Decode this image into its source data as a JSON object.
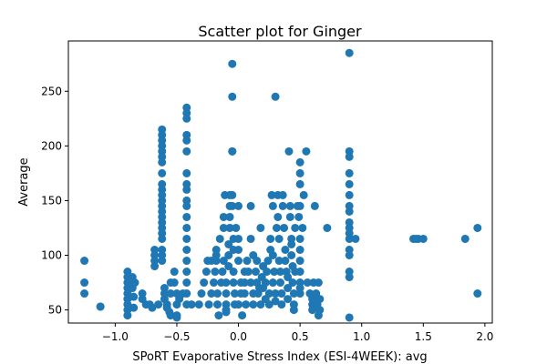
{
  "chart_data": {
    "type": "scatter",
    "title": "Scatter plot for Ginger",
    "xlabel": "SPoRT Evaporative Stress Index (ESI-4WEEK): avg",
    "ylabel": "Average",
    "xlim": [
      -1.38,
      2.06
    ],
    "ylim": [
      38,
      296
    ],
    "xticks": [
      -1.0,
      -0.5,
      0.0,
      0.5,
      1.0,
      1.5,
      2.0
    ],
    "xtick_labels": [
      "−1.0",
      "−0.5",
      "0.0",
      "0.5",
      "1.0",
      "1.5",
      "2.0"
    ],
    "yticks": [
      50,
      100,
      150,
      200,
      250
    ],
    "ytick_labels": [
      "50",
      "100",
      "150",
      "200",
      "250"
    ],
    "grid": false,
    "marker_color": "#1f77b4",
    "points": [
      [
        -1.25,
        95
      ],
      [
        -1.25,
        75
      ],
      [
        -1.25,
        65
      ],
      [
        -1.12,
        53
      ],
      [
        -1.12,
        53
      ],
      [
        -0.9,
        85
      ],
      [
        -0.9,
        80
      ],
      [
        -0.9,
        75
      ],
      [
        -0.9,
        70
      ],
      [
        -0.9,
        65
      ],
      [
        -0.9,
        60
      ],
      [
        -0.9,
        55
      ],
      [
        -0.9,
        50
      ],
      [
        -0.9,
        45
      ],
      [
        -0.86,
        80
      ],
      [
        -0.86,
        70
      ],
      [
        -0.85,
        62
      ],
      [
        -0.85,
        52
      ],
      [
        -0.84,
        75
      ],
      [
        -0.78,
        65
      ],
      [
        -0.78,
        60
      ],
      [
        -0.75,
        55
      ],
      [
        -0.72,
        55
      ],
      [
        -0.7,
        52
      ],
      [
        -0.68,
        105
      ],
      [
        -0.68,
        100
      ],
      [
        -0.68,
        95
      ],
      [
        -0.68,
        90
      ],
      [
        -0.65,
        55
      ],
      [
        -0.62,
        215
      ],
      [
        -0.62,
        210
      ],
      [
        -0.62,
        205
      ],
      [
        -0.62,
        200
      ],
      [
        -0.62,
        195
      ],
      [
        -0.62,
        190
      ],
      [
        -0.62,
        185
      ],
      [
        -0.62,
        175
      ],
      [
        -0.62,
        165
      ],
      [
        -0.62,
        160
      ],
      [
        -0.62,
        155
      ],
      [
        -0.62,
        150
      ],
      [
        -0.62,
        145
      ],
      [
        -0.62,
        140
      ],
      [
        -0.62,
        135
      ],
      [
        -0.62,
        130
      ],
      [
        -0.62,
        125
      ],
      [
        -0.62,
        120
      ],
      [
        -0.62,
        115
      ],
      [
        -0.62,
        105
      ],
      [
        -0.62,
        100
      ],
      [
        -0.62,
        95
      ],
      [
        -0.6,
        70
      ],
      [
        -0.6,
        65
      ],
      [
        -0.6,
        60
      ],
      [
        -0.58,
        55
      ],
      [
        -0.58,
        52
      ],
      [
        -0.56,
        48
      ],
      [
        -0.55,
        45
      ],
      [
        -0.55,
        65
      ],
      [
        -0.55,
        75
      ],
      [
        -0.52,
        85
      ],
      [
        -0.52,
        75
      ],
      [
        -0.5,
        65
      ],
      [
        -0.5,
        55
      ],
      [
        -0.5,
        45
      ],
      [
        -0.5,
        43
      ],
      [
        -0.48,
        60
      ],
      [
        -0.45,
        65
      ],
      [
        -0.42,
        235
      ],
      [
        -0.42,
        230
      ],
      [
        -0.42,
        225
      ],
      [
        -0.42,
        210
      ],
      [
        -0.42,
        205
      ],
      [
        -0.42,
        195
      ],
      [
        -0.42,
        175
      ],
      [
        -0.42,
        165
      ],
      [
        -0.42,
        160
      ],
      [
        -0.42,
        150
      ],
      [
        -0.42,
        145
      ],
      [
        -0.42,
        135
      ],
      [
        -0.42,
        125
      ],
      [
        -0.42,
        115
      ],
      [
        -0.42,
        105
      ],
      [
        -0.42,
        95
      ],
      [
        -0.42,
        85
      ],
      [
        -0.42,
        75
      ],
      [
        -0.42,
        65
      ],
      [
        -0.42,
        55
      ],
      [
        -0.38,
        55
      ],
      [
        -0.32,
        55
      ],
      [
        -0.3,
        65
      ],
      [
        -0.28,
        75
      ],
      [
        -0.26,
        85
      ],
      [
        -0.25,
        95
      ],
      [
        -0.24,
        55
      ],
      [
        -0.22,
        65
      ],
      [
        -0.22,
        95
      ],
      [
        -0.2,
        75
      ],
      [
        -0.19,
        85
      ],
      [
        -0.18,
        95
      ],
      [
        -0.18,
        100
      ],
      [
        -0.18,
        105
      ],
      [
        -0.17,
        65
      ],
      [
        -0.17,
        55
      ],
      [
        -0.16,
        45
      ],
      [
        -0.15,
        115
      ],
      [
        -0.14,
        75
      ],
      [
        -0.13,
        85
      ],
      [
        -0.12,
        95
      ],
      [
        -0.12,
        125
      ],
      [
        -0.12,
        135
      ],
      [
        -0.11,
        155
      ],
      [
        -0.1,
        65
      ],
      [
        -0.1,
        75
      ],
      [
        -0.1,
        55
      ],
      [
        -0.1,
        50
      ],
      [
        -0.1,
        48
      ],
      [
        -0.08,
        110
      ],
      [
        -0.08,
        100
      ],
      [
        -0.08,
        90
      ],
      [
        -0.07,
        145
      ],
      [
        -0.07,
        135
      ],
      [
        -0.07,
        125
      ],
      [
        -0.07,
        155
      ],
      [
        -0.05,
        275
      ],
      [
        -0.05,
        245
      ],
      [
        -0.05,
        195
      ],
      [
        -0.05,
        195
      ],
      [
        -0.05,
        155
      ],
      [
        -0.05,
        145
      ],
      [
        -0.04,
        115
      ],
      [
        -0.04,
        105
      ],
      [
        -0.04,
        85
      ],
      [
        -0.04,
        75
      ],
      [
        -0.03,
        65
      ],
      [
        -0.03,
        55
      ],
      [
        -0.02,
        125
      ],
      [
        0.0,
        145
      ],
      [
        0.0,
        115
      ],
      [
        0.0,
        105
      ],
      [
        0.0,
        95
      ],
      [
        0.0,
        55
      ],
      [
        0.02,
        65
      ],
      [
        0.02,
        75
      ],
      [
        0.03,
        45
      ],
      [
        0.05,
        85
      ],
      [
        0.05,
        75
      ],
      [
        0.05,
        65
      ],
      [
        0.06,
        55
      ],
      [
        0.07,
        95
      ],
      [
        0.08,
        85
      ],
      [
        0.1,
        145
      ],
      [
        0.1,
        115
      ],
      [
        0.1,
        75
      ],
      [
        0.12,
        55
      ],
      [
        0.12,
        65
      ],
      [
        0.12,
        100
      ],
      [
        0.14,
        85
      ],
      [
        0.15,
        75
      ],
      [
        0.15,
        95
      ],
      [
        0.16,
        65
      ],
      [
        0.17,
        70
      ],
      [
        0.18,
        55
      ],
      [
        0.18,
        125
      ],
      [
        0.19,
        80
      ],
      [
        0.2,
        90
      ],
      [
        0.2,
        70
      ],
      [
        0.22,
        60
      ],
      [
        0.22,
        75
      ],
      [
        0.23,
        85
      ],
      [
        0.24,
        95
      ],
      [
        0.25,
        65
      ],
      [
        0.25,
        55
      ],
      [
        0.26,
        105
      ],
      [
        0.26,
        115
      ],
      [
        0.27,
        155
      ],
      [
        0.28,
        145
      ],
      [
        0.28,
        100
      ],
      [
        0.28,
        75
      ],
      [
        0.29,
        85
      ],
      [
        0.3,
        65
      ],
      [
        0.3,
        58
      ],
      [
        0.3,
        245
      ],
      [
        0.31,
        125
      ],
      [
        0.32,
        155
      ],
      [
        0.32,
        135
      ],
      [
        0.33,
        115
      ],
      [
        0.33,
        95
      ],
      [
        0.34,
        85
      ],
      [
        0.34,
        75
      ],
      [
        0.35,
        65
      ],
      [
        0.35,
        55
      ],
      [
        0.36,
        145
      ],
      [
        0.36,
        155
      ],
      [
        0.37,
        125
      ],
      [
        0.38,
        105
      ],
      [
        0.38,
        95
      ],
      [
        0.39,
        85
      ],
      [
        0.4,
        80
      ],
      [
        0.4,
        70
      ],
      [
        0.4,
        60
      ],
      [
        0.41,
        195
      ],
      [
        0.42,
        145
      ],
      [
        0.42,
        135
      ],
      [
        0.43,
        115
      ],
      [
        0.43,
        110
      ],
      [
        0.43,
        100
      ],
      [
        0.44,
        90
      ],
      [
        0.44,
        75
      ],
      [
        0.45,
        65
      ],
      [
        0.45,
        55
      ],
      [
        0.45,
        50
      ],
      [
        0.46,
        85
      ],
      [
        0.46,
        125
      ],
      [
        0.48,
        145
      ],
      [
        0.49,
        135
      ],
      [
        0.5,
        185
      ],
      [
        0.5,
        175
      ],
      [
        0.5,
        165
      ],
      [
        0.5,
        145
      ],
      [
        0.5,
        115
      ],
      [
        0.5,
        105
      ],
      [
        0.5,
        95
      ],
      [
        0.5,
        85
      ],
      [
        0.5,
        75
      ],
      [
        0.5,
        70
      ],
      [
        0.5,
        65
      ],
      [
        0.52,
        125
      ],
      [
        0.53,
        155
      ],
      [
        0.55,
        195
      ],
      [
        0.56,
        75
      ],
      [
        0.58,
        65
      ],
      [
        0.6,
        60
      ],
      [
        0.6,
        55
      ],
      [
        0.6,
        50
      ],
      [
        0.61,
        75
      ],
      [
        0.62,
        145
      ],
      [
        0.63,
        65
      ],
      [
        0.64,
        55
      ],
      [
        0.65,
        75
      ],
      [
        0.65,
        45
      ],
      [
        0.66,
        60
      ],
      [
        0.66,
        50
      ],
      [
        0.72,
        125
      ],
      [
        0.9,
        285
      ],
      [
        0.9,
        195
      ],
      [
        0.9,
        190
      ],
      [
        0.9,
        175
      ],
      [
        0.9,
        165
      ],
      [
        0.9,
        155
      ],
      [
        0.9,
        145
      ],
      [
        0.9,
        140
      ],
      [
        0.9,
        130
      ],
      [
        0.9,
        125
      ],
      [
        0.9,
        120
      ],
      [
        0.9,
        115
      ],
      [
        0.9,
        105
      ],
      [
        0.9,
        100
      ],
      [
        0.9,
        85
      ],
      [
        0.9,
        80
      ],
      [
        0.9,
        43
      ],
      [
        0.95,
        115
      ],
      [
        1.42,
        115
      ],
      [
        1.44,
        115
      ],
      [
        1.46,
        115
      ],
      [
        1.5,
        115
      ],
      [
        1.84,
        115
      ],
      [
        1.94,
        125
      ],
      [
        1.94,
        65
      ]
    ]
  }
}
